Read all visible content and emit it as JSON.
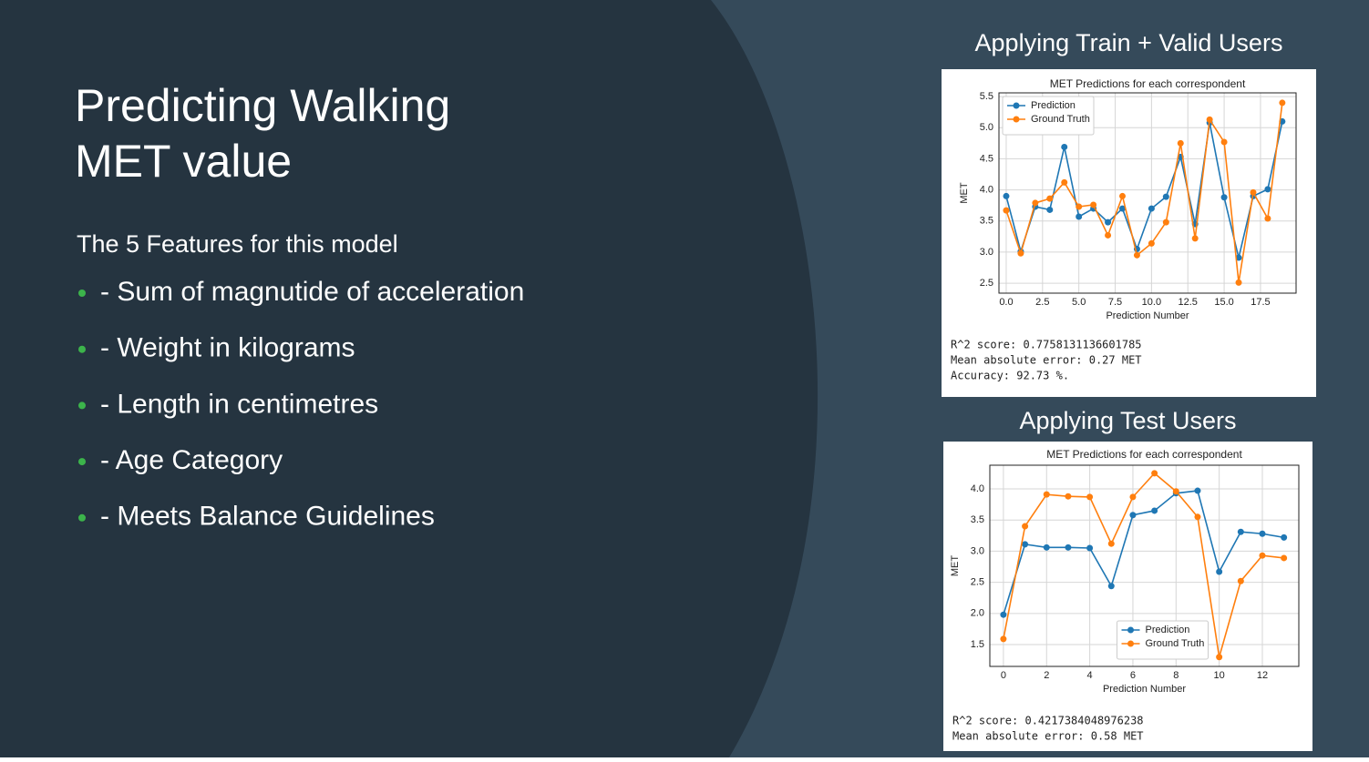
{
  "slide": {
    "title_lines": [
      "Predicting Walking",
      "MET value"
    ],
    "intro": "The 5 Features for this model",
    "bullets": [
      "- Sum of magnutide of acceleration",
      "- Weight in kilograms",
      "- Length in centimetres",
      "- Age Category",
      "- Meets Balance Guidelines"
    ]
  },
  "chart_data": [
    {
      "type": "line",
      "heading": "Applying Train + Valid Users",
      "title": "MET Predictions for each correspondent",
      "x_label": "Prediction Number",
      "y_label": "MET",
      "x": [
        0,
        1,
        2,
        3,
        4,
        5,
        6,
        7,
        8,
        9,
        10,
        11,
        12,
        13,
        14,
        15,
        16,
        17,
        18,
        19
      ],
      "series": [
        {
          "name": "Prediction",
          "color": "#1f77b4",
          "values": [
            3.9,
            3.01,
            3.73,
            3.68,
            4.69,
            3.57,
            3.7,
            3.48,
            3.7,
            3.05,
            3.7,
            3.89,
            4.53,
            3.45,
            5.08,
            3.88,
            2.91,
            3.9,
            4.01,
            5.1
          ]
        },
        {
          "name": "Ground Truth",
          "color": "#ff7f0e",
          "values": [
            3.67,
            2.98,
            3.79,
            3.86,
            4.12,
            3.73,
            3.76,
            3.27,
            3.9,
            2.95,
            3.14,
            3.48,
            4.75,
            3.22,
            5.13,
            4.77,
            2.51,
            3.96,
            3.54,
            5.4
          ]
        }
      ],
      "xlim": [
        -0.5,
        19.95
      ],
      "ylim": [
        2.34,
        5.56
      ],
      "xticks": [
        {
          "value": 0,
          "label": "0.0"
        },
        2.5,
        {
          "value": 5,
          "label": "5.0"
        },
        7.5,
        {
          "value": 10,
          "label": "10.0"
        },
        12.5,
        {
          "value": 15,
          "label": "15.0"
        },
        17.5
      ],
      "yticks": [
        2.5,
        {
          "value": 3,
          "label": "3.0"
        },
        3.5,
        {
          "value": 4,
          "label": "4.0"
        },
        4.5,
        {
          "value": 5,
          "label": "5.0"
        },
        5.5
      ],
      "grid": true,
      "legend": "upper left",
      "annotations": [
        "R^2 score: 0.7758131136601785",
        "Mean absolute error:  0.27 MET",
        "Accuracy: 92.73 %."
      ]
    },
    {
      "type": "line",
      "heading": "Applying Test Users",
      "title": "MET Predictions for each correspondent",
      "x_label": "Prediction Number",
      "y_label": "MET",
      "x": [
        0,
        1,
        2,
        3,
        4,
        5,
        6,
        7,
        8,
        9,
        10,
        11,
        12,
        13
      ],
      "series": [
        {
          "name": "Prediction",
          "color": "#1f77b4",
          "values": [
            1.98,
            3.11,
            3.06,
            3.06,
            3.05,
            2.44,
            3.58,
            3.65,
            3.93,
            3.97,
            2.67,
            3.31,
            3.28,
            3.22
          ]
        },
        {
          "name": "Ground Truth",
          "color": "#ff7f0e",
          "values": [
            1.59,
            3.4,
            3.91,
            3.88,
            3.87,
            3.12,
            3.87,
            4.25,
            3.96,
            3.55,
            1.3,
            2.52,
            2.93,
            2.89
          ]
        }
      ],
      "xlim": [
        -0.63,
        13.69
      ],
      "ylim": [
        1.15,
        4.38
      ],
      "xticks": [
        0,
        2,
        4,
        6,
        8,
        10,
        12
      ],
      "yticks": [
        1.5,
        {
          "value": 2,
          "label": "2.0"
        },
        2.5,
        {
          "value": 3,
          "label": "3.0"
        },
        3.5,
        {
          "value": 4,
          "label": "4.0"
        }
      ],
      "grid": true,
      "legend": "lower center",
      "annotations": [
        "R^2 score: 0.4217384048976238",
        "Mean absolute error:  0.58 MET"
      ]
    }
  ]
}
